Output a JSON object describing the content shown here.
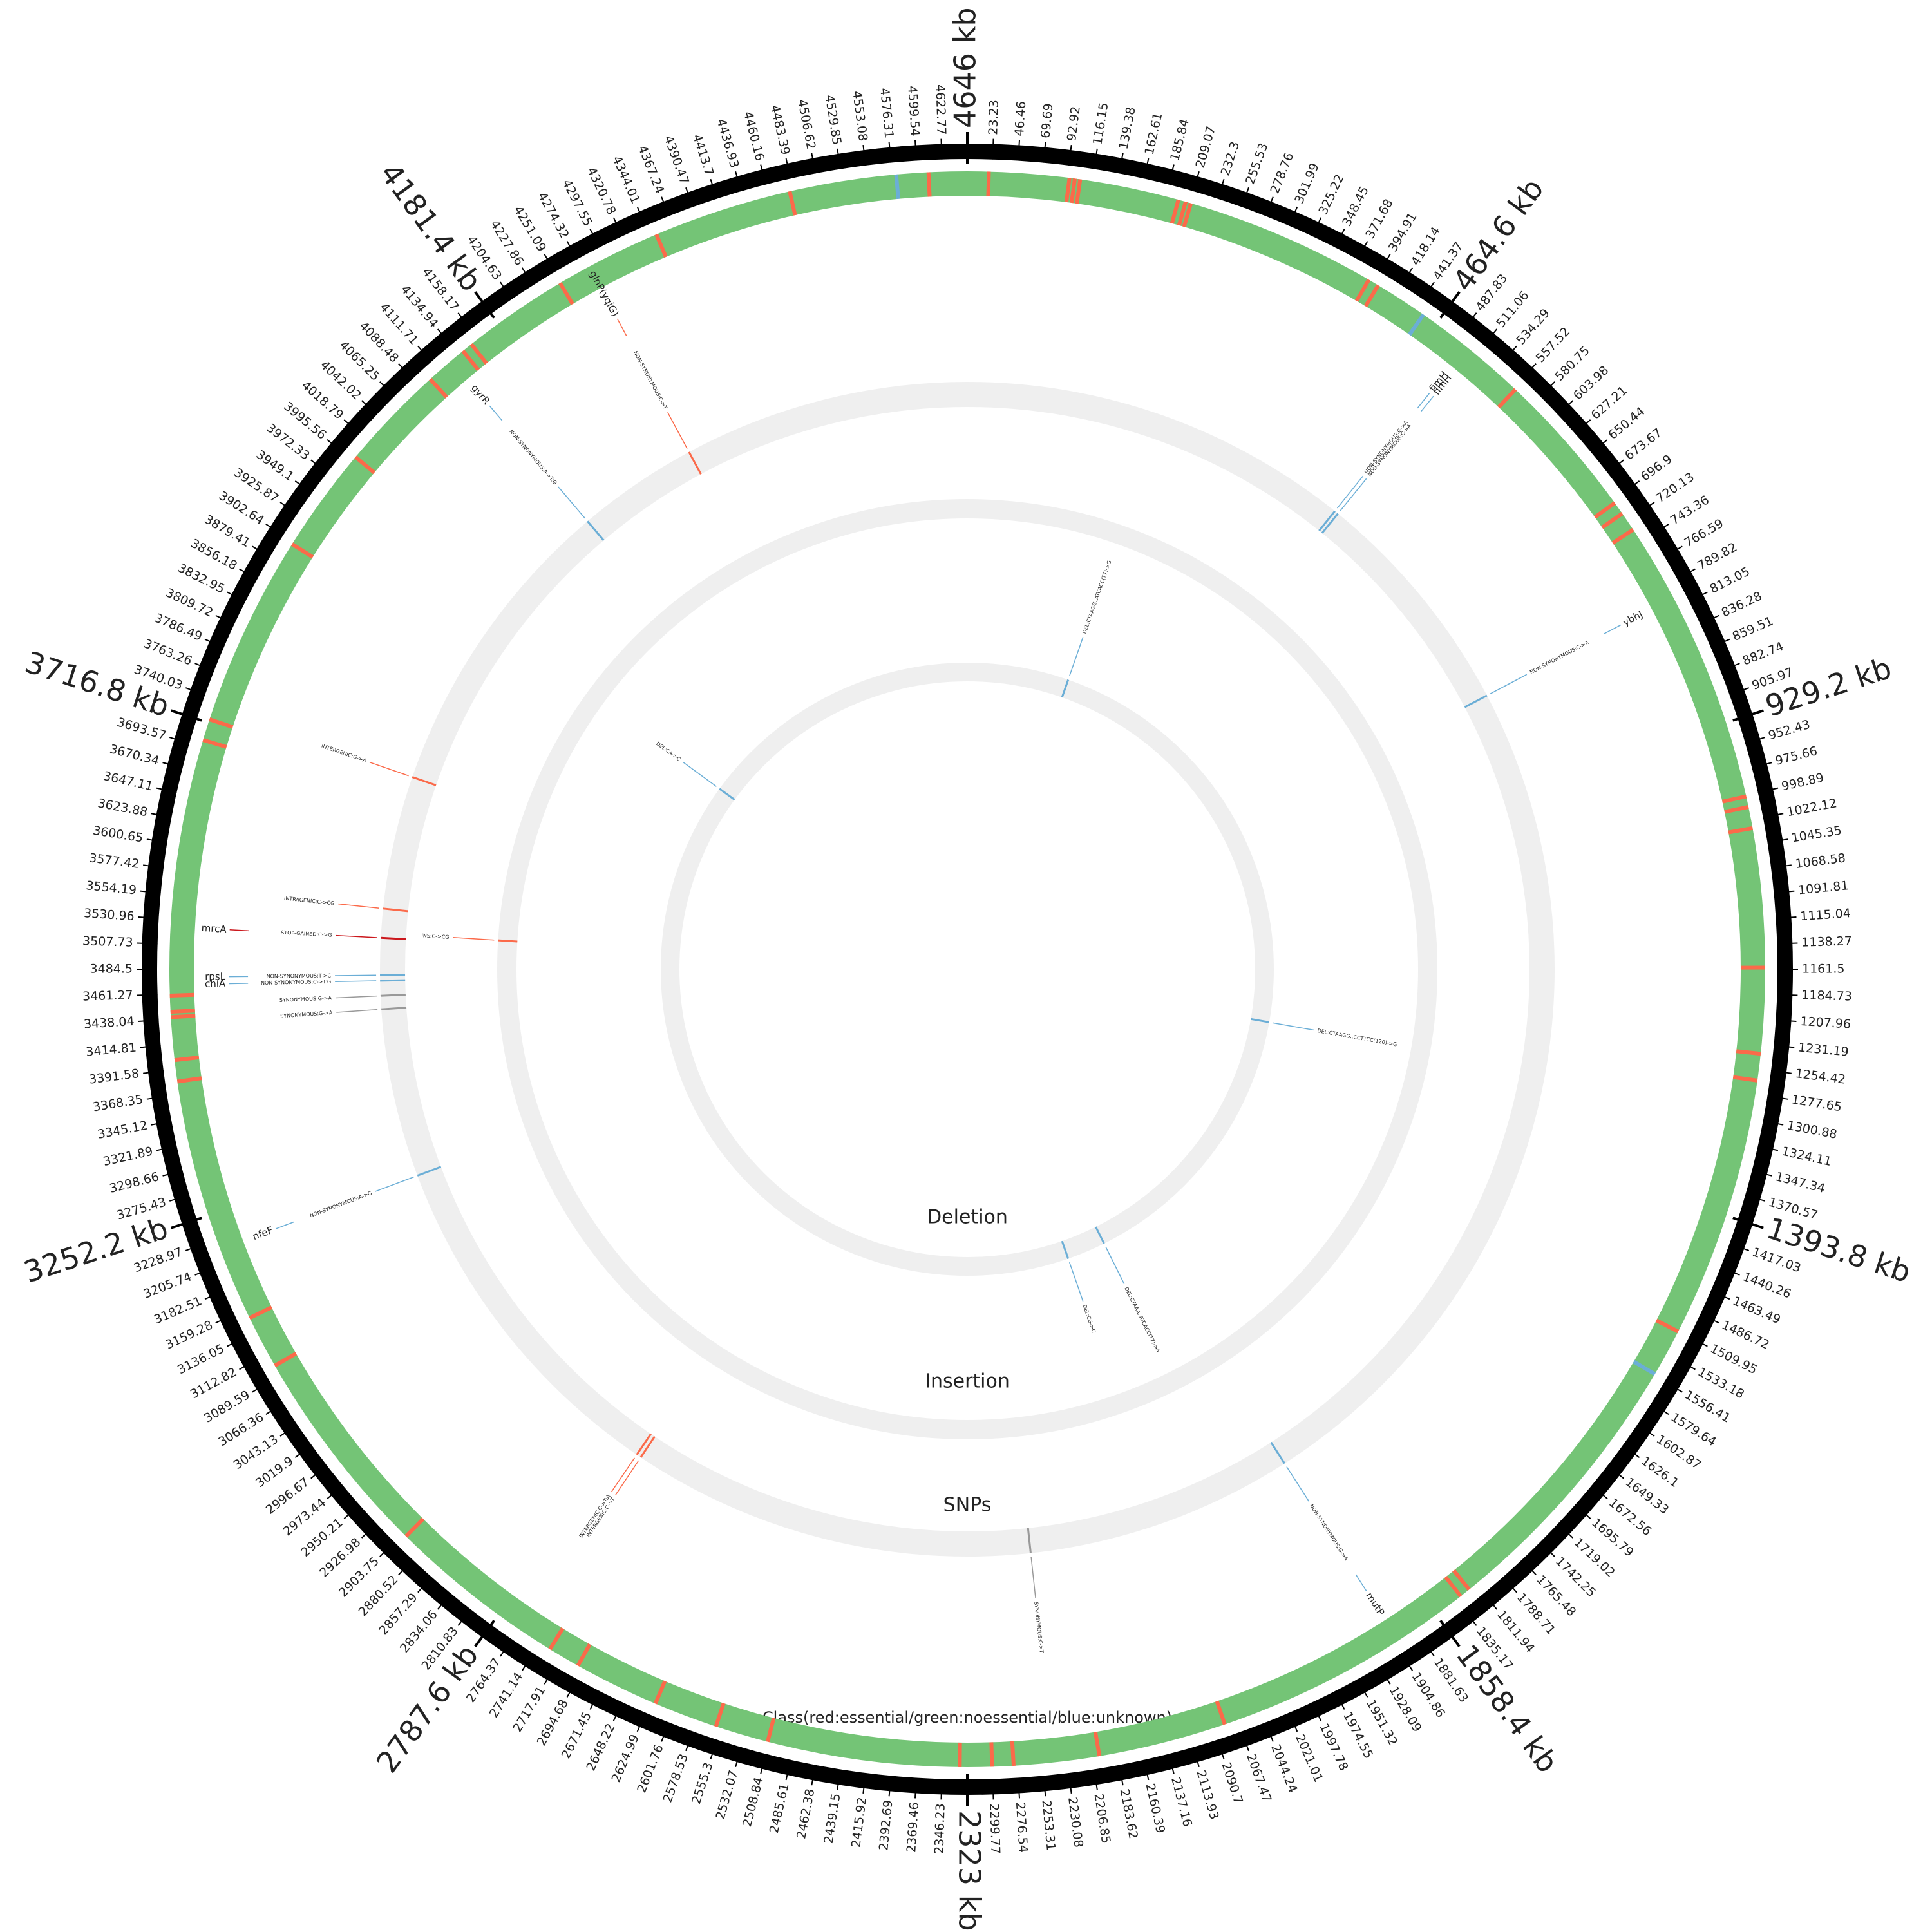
{
  "chart_data": {
    "type": "circular_genome",
    "genome_length": 4646,
    "major_ticks": [
      {
        "value": 4646,
        "label": "4646 kb"
      },
      {
        "value": 464.6,
        "label": "464.6 kb"
      },
      {
        "value": 929.2,
        "label": "929.2 kb"
      },
      {
        "value": 1393.8,
        "label": "1393.8 kb"
      },
      {
        "value": 1858.4,
        "label": "1858.4 kb"
      },
      {
        "value": 2323,
        "label": "2323 kb"
      },
      {
        "value": 2787.6,
        "label": "2787.6 kb"
      },
      {
        "value": 3252.2,
        "label": "3252.2 kb"
      },
      {
        "value": 3716.8,
        "label": "3716.8 kb"
      },
      {
        "value": 4181.4,
        "label": "4181.4 kb"
      }
    ],
    "minor_ticks": [
      23.23,
      46.46,
      69.69,
      92.92,
      116.15,
      139.38,
      162.61,
      185.84,
      209.07,
      232.3,
      255.53,
      278.76,
      301.99,
      325.22,
      348.45,
      371.68,
      394.91,
      418.14,
      441.37,
      487.83,
      511.06,
      534.29,
      557.52,
      580.75,
      603.98,
      627.21,
      650.44,
      673.67,
      696.9,
      720.13,
      743.36,
      766.59,
      789.82,
      813.05,
      836.28,
      859.51,
      882.74,
      905.97,
      952.43,
      975.66,
      998.89,
      1022.12,
      1045.35,
      1068.58,
      1091.81,
      1115.04,
      1138.27,
      1161.5,
      1184.73,
      1207.96,
      1231.19,
      1254.42,
      1277.65,
      1300.88,
      1324.11,
      1347.34,
      1370.57,
      1417.03,
      1440.26,
      1463.49,
      1486.72,
      1509.95,
      1533.18,
      1556.41,
      1579.64,
      1602.87,
      1626.1,
      1649.33,
      1672.56,
      1695.79,
      1719.02,
      1742.25,
      1765.48,
      1788.71,
      1811.94,
      1835.17,
      1881.63,
      1904.86,
      1928.09,
      1951.32,
      1974.55,
      1997.78,
      2021.01,
      2044.24,
      2067.47,
      2090.7,
      2113.93,
      2137.16,
      2160.39,
      2183.62,
      2206.85,
      2230.08,
      2253.31,
      2276.54,
      2299.77,
      2346.23,
      2369.46,
      2392.69,
      2415.92,
      2439.15,
      2462.38,
      2485.61,
      2508.84,
      2532.07,
      2555.3,
      2578.53,
      2601.76,
      2624.99,
      2648.22,
      2671.45,
      2694.68,
      2717.91,
      2741.14,
      2764.37,
      2810.83,
      2834.06,
      2857.29,
      2880.52,
      2903.75,
      2926.98,
      2950.21,
      2973.44,
      2996.67,
      3019.9,
      3043.13,
      3066.36,
      3089.59,
      3112.82,
      3136.05,
      3159.28,
      3182.51,
      3205.74,
      3228.97,
      3275.43,
      3298.66,
      3321.89,
      3345.12,
      3368.35,
      3391.58,
      3414.81,
      3438.04,
      3461.27,
      3484.5,
      3507.73,
      3530.96,
      3554.19,
      3577.42,
      3600.65,
      3623.88,
      3647.11,
      3670.34,
      3693.57,
      3740.03,
      3763.26,
      3786.49,
      3809.72,
      3832.95,
      3856.18,
      3879.41,
      3902.64,
      3925.87,
      3949.1,
      3972.33,
      3995.56,
      4018.79,
      4042.02,
      4065.25,
      4088.48,
      4111.71,
      4134.94,
      4158.17,
      4204.63,
      4227.86,
      4251.09,
      4274.32,
      4297.55,
      4320.78,
      4344.01,
      4367.24,
      4390.47,
      4413.7,
      4436.93,
      4460.16,
      4483.39,
      4506.62,
      4529.85,
      4553.08,
      4576.31,
      4599.54,
      4622.77
    ],
    "class_track": {
      "label": "Class(red:essential/green:noessential/blue:unknown)",
      "color": "#74c476",
      "essential": {
        "color": "#fb6a4a",
        "positions": [
          20,
          95,
          100,
          105,
          198,
          205,
          210,
          390,
          400,
          560,
          700,
          712,
          730,
          1000,
          1010,
          1030,
          1160,
          1240,
          1265,
          1510,
          1820,
          1830,
          2080,
          2200,
          2280,
          2300,
          2330,
          2510,
          2560,
          2620,
          2700,
          2730,
          2900,
          3100,
          3150,
          3380,
          3400,
          3440,
          3445,
          3460,
          3700,
          3720,
          3900,
          4000,
          4100,
          4140,
          4150,
          4250,
          4350,
          4480,
          4610
        ]
      },
      "unknown": {
        "color": "#6baed6",
        "positions": [
          450,
          1555,
          4580
        ]
      }
    },
    "tracks": [
      {
        "name": "SNPs",
        "variants": [
          {
            "position": 4281,
            "label": "NON-SYNONYMOUS:C->T",
            "gene": "glnP(yqiG)",
            "color": "#fb6a4a"
          },
          {
            "position": 4126,
            "label": "NON-SYNONYMOUS:A->T:G",
            "gene": "gyrR",
            "color": "#6baed6"
          },
          {
            "position": 500,
            "label": "NON-SYNONYMOUS:G->A",
            "gene": "fimH",
            "color": "#6baed6"
          },
          {
            "position": 505,
            "label": "NON-SYNONYMOUS:C->A",
            "gene": "fimH",
            "color": "#6baed6"
          },
          {
            "position": 803,
            "label": "NON-SYNONYMOUS:C->A",
            "gene": "ybhJ",
            "color": "#6baed6"
          },
          {
            "position": 3731,
            "label": "INTERGENIC:G->A",
            "color": "#fb6a4a"
          },
          {
            "position": 3561,
            "label": "INTRAGENIC:C->CG",
            "color": "#fb6a4a"
          },
          {
            "position": 3524,
            "label": "STOP-GAINED:C->G",
            "gene": "mrcA",
            "color": "#cb181d"
          },
          {
            "position": 3477,
            "label": "NON-SYNONYMOUS:T->C",
            "gene": "rpsL",
            "color": "#6baed6"
          },
          {
            "position": 3470,
            "label": "NON-SYNONYMOUS:C->T:G",
            "gene": "chiA",
            "color": "#6baed6"
          },
          {
            "position": 3451,
            "label": "SYNONYMOUS:G->A",
            "color": "#999999"
          },
          {
            "position": 3434,
            "label": "SYNONYMOUS:G->A",
            "color": "#999999"
          },
          {
            "position": 3219,
            "label": "NON-SYNONYMOUS:A->G",
            "gene": "nfeF",
            "color": "#6baed6"
          },
          {
            "position": 2759,
            "label": "INTERGENIC:C->T",
            "color": "#fb6a4a"
          },
          {
            "position": 2765,
            "label": "INTERGENIC:C->T:A",
            "color": "#fb6a4a"
          },
          {
            "position": 2243,
            "label": "SYNONYMOUS:C->T",
            "color": "#999999"
          },
          {
            "position": 1901,
            "label": "NON-SYNONYMOUS:G->A",
            "gene": "mutP",
            "color": "#6baed6"
          }
        ]
      },
      {
        "name": "Insertion",
        "variants": [
          {
            "position": 3530,
            "label": "INS:C->CG",
            "color": "#fb6a4a"
          }
        ]
      },
      {
        "name": "Deletion",
        "variants": [
          {
            "position": 248,
            "label": "DEL:CTAAGG..ATCACC(T7)->G",
            "color": "#6baed6"
          },
          {
            "position": 1290,
            "label": "DEL:CTAAGG..CCTTCC(120)->G",
            "color": "#6baed6"
          },
          {
            "position": 1981,
            "label": "DEL:CTAAA..ATCACC(T7)->A",
            "color": "#6baed6"
          },
          {
            "position": 2075,
            "label": "DEL:CG->C",
            "color": "#6baed6"
          },
          {
            "position": 3950,
            "label": "DEL:CA->C",
            "color": "#6baed6"
          }
        ]
      }
    ]
  }
}
